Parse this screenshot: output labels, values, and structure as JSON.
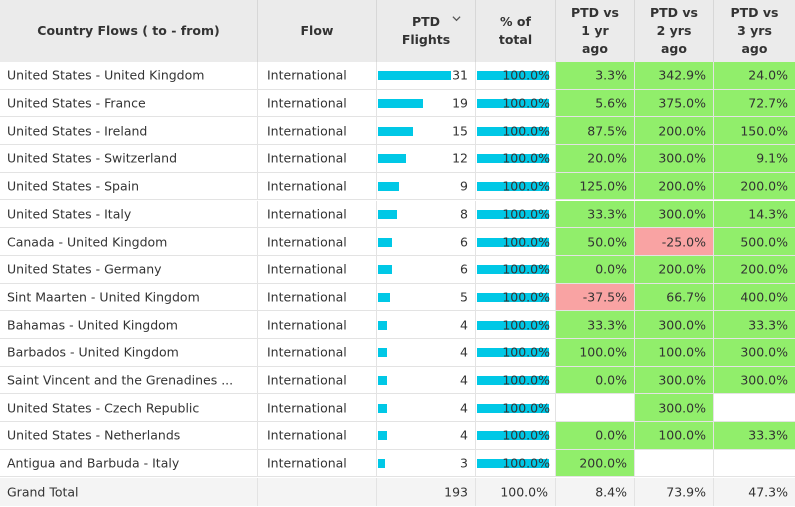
{
  "header": {
    "country": "Country Flows ( to - from)",
    "flow": "Flow",
    "ptd_line1": "PTD",
    "ptd_line2": "Flights",
    "pct_line1": "% of",
    "pct_line2": "total",
    "vs1_line1": "PTD vs",
    "vs1_line2": "1 yr",
    "vs1_line3": "ago",
    "vs2_line1": "PTD vs",
    "vs2_line2": "2 yrs",
    "vs2_line3": "ago",
    "vs3_line1": "PTD vs",
    "vs3_line2": "3 yrs",
    "vs3_line3": "ago"
  },
  "rows": [
    {
      "country": "United States - United Kingdom",
      "flow": "International",
      "flights": "31",
      "flights_value": 31,
      "pct": "100.0%",
      "vs1": "3.3%",
      "vs2": "342.9%",
      "vs3": "24.0%",
      "vs1_state": "pos",
      "vs2_state": "pos",
      "vs3_state": "pos"
    },
    {
      "country": "United States - France",
      "flow": "International",
      "flights": "19",
      "flights_value": 19,
      "pct": "100.0%",
      "vs1": "5.6%",
      "vs2": "375.0%",
      "vs3": "72.7%",
      "vs1_state": "pos",
      "vs2_state": "pos",
      "vs3_state": "pos"
    },
    {
      "country": "United States - Ireland",
      "flow": "International",
      "flights": "15",
      "flights_value": 15,
      "pct": "100.0%",
      "vs1": "87.5%",
      "vs2": "200.0%",
      "vs3": "150.0%",
      "vs1_state": "pos",
      "vs2_state": "pos",
      "vs3_state": "pos"
    },
    {
      "country": "United States - Switzerland",
      "flow": "International",
      "flights": "12",
      "flights_value": 12,
      "pct": "100.0%",
      "vs1": "20.0%",
      "vs2": "300.0%",
      "vs3": "9.1%",
      "vs1_state": "pos",
      "vs2_state": "pos",
      "vs3_state": "pos"
    },
    {
      "country": "United States - Spain",
      "flow": "International",
      "flights": "9",
      "flights_value": 9,
      "pct": "100.0%",
      "vs1": "125.0%",
      "vs2": "200.0%",
      "vs3": "200.0%",
      "vs1_state": "pos",
      "vs2_state": "pos",
      "vs3_state": "pos"
    },
    {
      "country": "United States - Italy",
      "flow": "International",
      "flights": "8",
      "flights_value": 8,
      "pct": "100.0%",
      "vs1": "33.3%",
      "vs2": "300.0%",
      "vs3": "14.3%",
      "vs1_state": "pos",
      "vs2_state": "pos",
      "vs3_state": "pos"
    },
    {
      "country": "Canada - United Kingdom",
      "flow": "International",
      "flights": "6",
      "flights_value": 6,
      "pct": "100.0%",
      "vs1": "50.0%",
      "vs2": "-25.0%",
      "vs3": "500.0%",
      "vs1_state": "pos",
      "vs2_state": "neg",
      "vs3_state": "pos"
    },
    {
      "country": "United States - Germany",
      "flow": "International",
      "flights": "6",
      "flights_value": 6,
      "pct": "100.0%",
      "vs1": "0.0%",
      "vs2": "200.0%",
      "vs3": "200.0%",
      "vs1_state": "pos",
      "vs2_state": "pos",
      "vs3_state": "pos"
    },
    {
      "country": "Sint Maarten - United Kingdom",
      "flow": "International",
      "flights": "5",
      "flights_value": 5,
      "pct": "100.0%",
      "vs1": "-37.5%",
      "vs2": "66.7%",
      "vs3": "400.0%",
      "vs1_state": "neg",
      "vs2_state": "pos",
      "vs3_state": "pos"
    },
    {
      "country": "Bahamas - United Kingdom",
      "flow": "International",
      "flights": "4",
      "flights_value": 4,
      "pct": "100.0%",
      "vs1": "33.3%",
      "vs2": "300.0%",
      "vs3": "33.3%",
      "vs1_state": "pos",
      "vs2_state": "pos",
      "vs3_state": "pos"
    },
    {
      "country": "Barbados - United Kingdom",
      "flow": "International",
      "flights": "4",
      "flights_value": 4,
      "pct": "100.0%",
      "vs1": "100.0%",
      "vs2": "100.0%",
      "vs3": "300.0%",
      "vs1_state": "pos",
      "vs2_state": "pos",
      "vs3_state": "pos"
    },
    {
      "country": "Saint Vincent and the Grenadines ...",
      "flow": "International",
      "flights": "4",
      "flights_value": 4,
      "pct": "100.0%",
      "vs1": "0.0%",
      "vs2": "300.0%",
      "vs3": "300.0%",
      "vs1_state": "pos",
      "vs2_state": "pos",
      "vs3_state": "pos"
    },
    {
      "country": "United States - Czech Republic",
      "flow": "International",
      "flights": "4",
      "flights_value": 4,
      "pct": "100.0%",
      "vs1": "",
      "vs2": "300.0%",
      "vs3": "",
      "vs1_state": "blank",
      "vs2_state": "pos",
      "vs3_state": "blank"
    },
    {
      "country": "United States - Netherlands",
      "flow": "International",
      "flights": "4",
      "flights_value": 4,
      "pct": "100.0%",
      "vs1": "0.0%",
      "vs2": "100.0%",
      "vs3": "33.3%",
      "vs1_state": "pos",
      "vs2_state": "pos",
      "vs3_state": "pos"
    },
    {
      "country": "Antigua and Barbuda - Italy",
      "flow": "International",
      "flights": "3",
      "flights_value": 3,
      "pct": "100.0%",
      "vs1": "200.0%",
      "vs2": "",
      "vs3": "",
      "vs1_state": "pos",
      "vs2_state": "blank",
      "vs3_state": "blank"
    }
  ],
  "total": {
    "label": "Grand Total",
    "flights": "193",
    "pct": "100.0%",
    "vs1": "8.4%",
    "vs2": "73.9%",
    "vs3": "47.3%"
  },
  "max_flights": 31,
  "pct_fill_fraction": 1.0,
  "colors": {
    "bar": "#00c8e6",
    "positive": "#91ee6b",
    "negative": "#f9a3a3",
    "header_bg": "#ebebeb"
  },
  "icons": {
    "sort": "chevron-down-icon"
  }
}
